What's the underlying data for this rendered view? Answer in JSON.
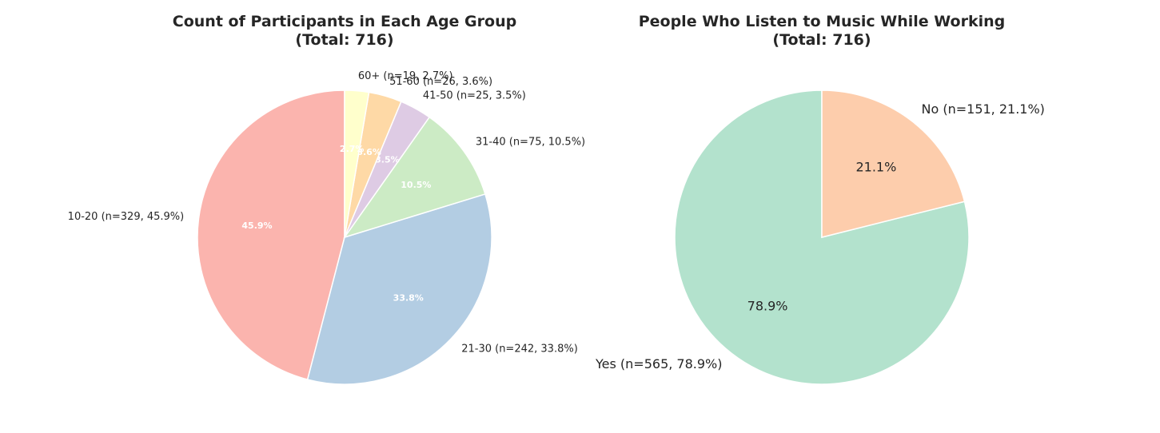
{
  "chart_data": [
    {
      "type": "pie",
      "title_line1": "Count of Participants in Each Age Group",
      "title_line2": "(Total: 716)",
      "slices": [
        {
          "label": "10-20",
          "count": 329,
          "percent": 45.9,
          "outer_text": "10-20 (n=329, 45.9%)",
          "inner_text": "45.9%",
          "color": "#fbb4ae"
        },
        {
          "label": "21-30",
          "count": 242,
          "percent": 33.8,
          "outer_text": "21-30 (n=242, 33.8%)",
          "inner_text": "33.8%",
          "color": "#b3cde3"
        },
        {
          "label": "31-40",
          "count": 75,
          "percent": 10.5,
          "outer_text": "31-40 (n=75, 10.5%)",
          "inner_text": "10.5%",
          "color": "#ccebc5"
        },
        {
          "label": "41-50",
          "count": 25,
          "percent": 3.5,
          "outer_text": "41-50 (n=25, 3.5%)",
          "inner_text": "3.5%",
          "color": "#decbe4"
        },
        {
          "label": "51-60",
          "count": 26,
          "percent": 3.6,
          "outer_text": "51-60 (n=26, 3.6%)",
          "inner_text": "3.6%",
          "color": "#fed9a6"
        },
        {
          "label": "60+",
          "count": 19,
          "percent": 2.7,
          "outer_text": "60+ (n=19, 2.7%)",
          "inner_text": "2.7%",
          "color": "#ffffcc"
        }
      ]
    },
    {
      "type": "pie",
      "title_line1": "People Who Listen to Music While Working",
      "title_line2": "(Total: 716)",
      "slices": [
        {
          "label": "Yes",
          "count": 565,
          "percent": 78.9,
          "outer_text": "Yes (n=565, 78.9%)",
          "inner_text": "78.9%",
          "color": "#b3e2cd"
        },
        {
          "label": "No",
          "count": 151,
          "percent": 21.1,
          "outer_text": "No (n=151, 21.1%)",
          "inner_text": "21.1%",
          "color": "#fdcdac"
        }
      ]
    }
  ]
}
